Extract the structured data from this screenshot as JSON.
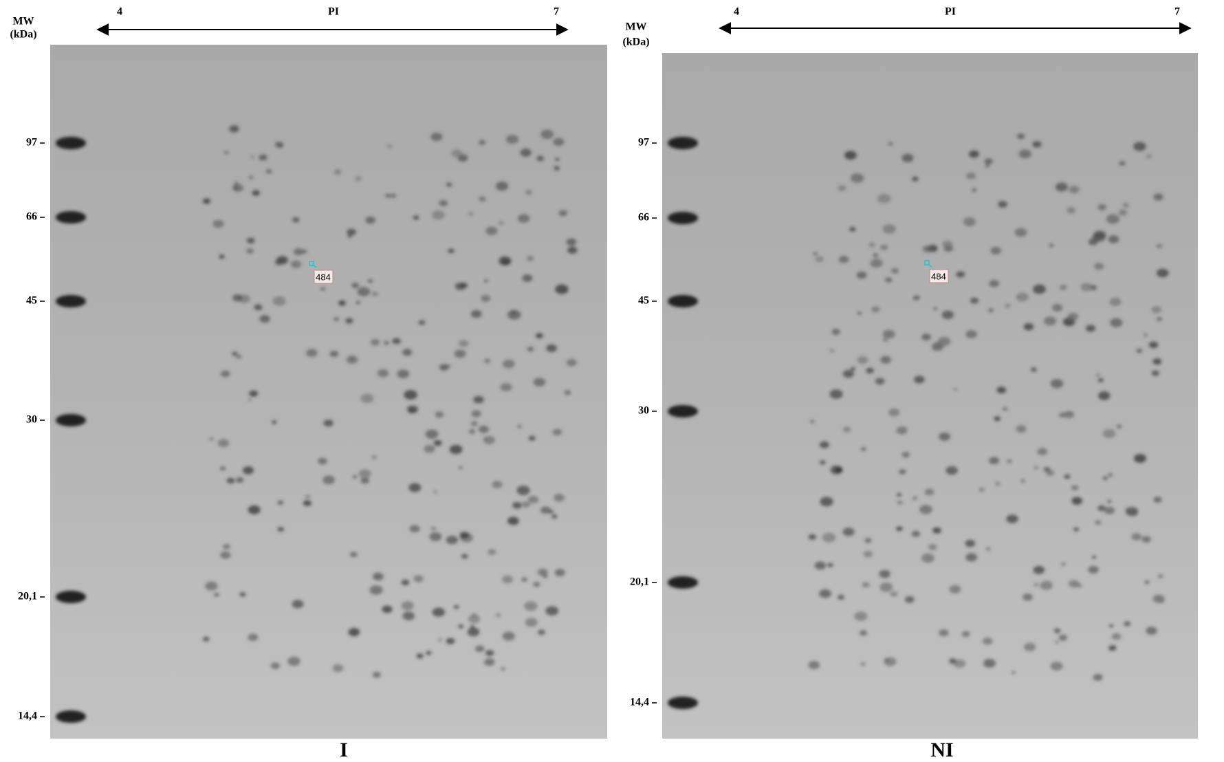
{
  "panels": [
    {
      "mw_label": "MW",
      "unit_label": "(kDa)",
      "pi_axis": {
        "start": "4",
        "title": "PI",
        "end": "7"
      },
      "mw_ticks": [
        "97",
        "66",
        "45",
        "30",
        "20,1",
        "14,4"
      ],
      "spot_label": "484",
      "panel_label": "I"
    },
    {
      "mw_label": "MW",
      "unit_label": "(kDa)",
      "pi_axis": {
        "start": "4",
        "title": "PI",
        "end": "7"
      },
      "mw_ticks": [
        "97",
        "66",
        "45",
        "30",
        "20,1",
        "14,4"
      ],
      "spot_label": "484",
      "panel_label": "NI"
    }
  ]
}
